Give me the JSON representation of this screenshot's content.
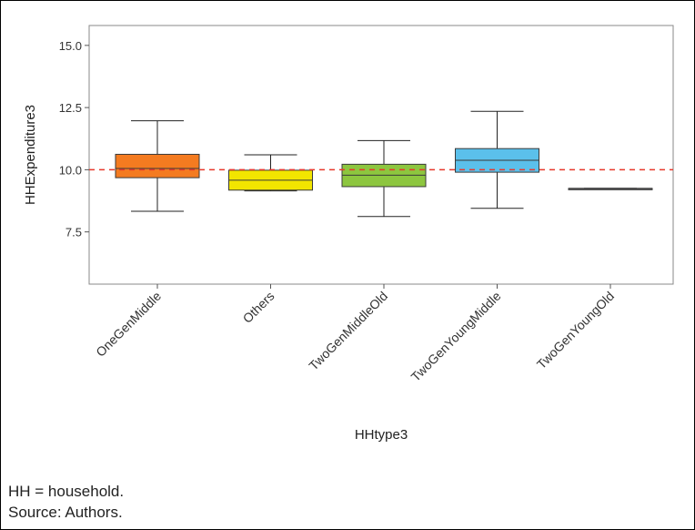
{
  "chart_data": {
    "type": "box",
    "title": "",
    "xlabel": "HHtype3",
    "ylabel": "HHExpenditure3",
    "ylim": [
      5.4,
      15.8
    ],
    "yticks": [
      7.5,
      10.0,
      12.5,
      15.0
    ],
    "ytick_labels": [
      "7.5",
      "10.0",
      "12.5",
      "15.0"
    ],
    "categories": [
      "OneGenMiddle",
      "Others",
      "TwoGenMiddleOld",
      "TwoGenYoungMiddle",
      "TwoGenYoungOld"
    ],
    "boxes": [
      {
        "category": "OneGenMiddle",
        "min": 8.33,
        "q1": 9.68,
        "median": 10.05,
        "q3": 10.62,
        "max": 11.97,
        "color": "#F47B20"
      },
      {
        "category": "Others",
        "min": 9.15,
        "q1": 9.18,
        "median": 9.58,
        "q3": 9.98,
        "max": 10.6,
        "color": "#F2E500"
      },
      {
        "category": "TwoGenMiddleOld",
        "min": 8.12,
        "q1": 9.32,
        "median": 9.78,
        "q3": 10.22,
        "max": 11.17,
        "color": "#8DC63F"
      },
      {
        "category": "TwoGenYoungMiddle",
        "min": 8.45,
        "q1": 9.9,
        "median": 10.38,
        "q3": 10.85,
        "max": 12.35,
        "color": "#5BC0EB"
      },
      {
        "category": "TwoGenYoungOld",
        "min": 9.25,
        "q1": 9.25,
        "median": 9.25,
        "q3": 9.25,
        "max": 9.25,
        "color": "#6D6E71"
      }
    ],
    "reference_line": {
      "y": 10.0,
      "style": "dashed",
      "color": "#E8382B"
    },
    "grid": false,
    "legend": "none"
  },
  "notes": {
    "line1": "HH = household.",
    "line2": "Source: Authors."
  }
}
